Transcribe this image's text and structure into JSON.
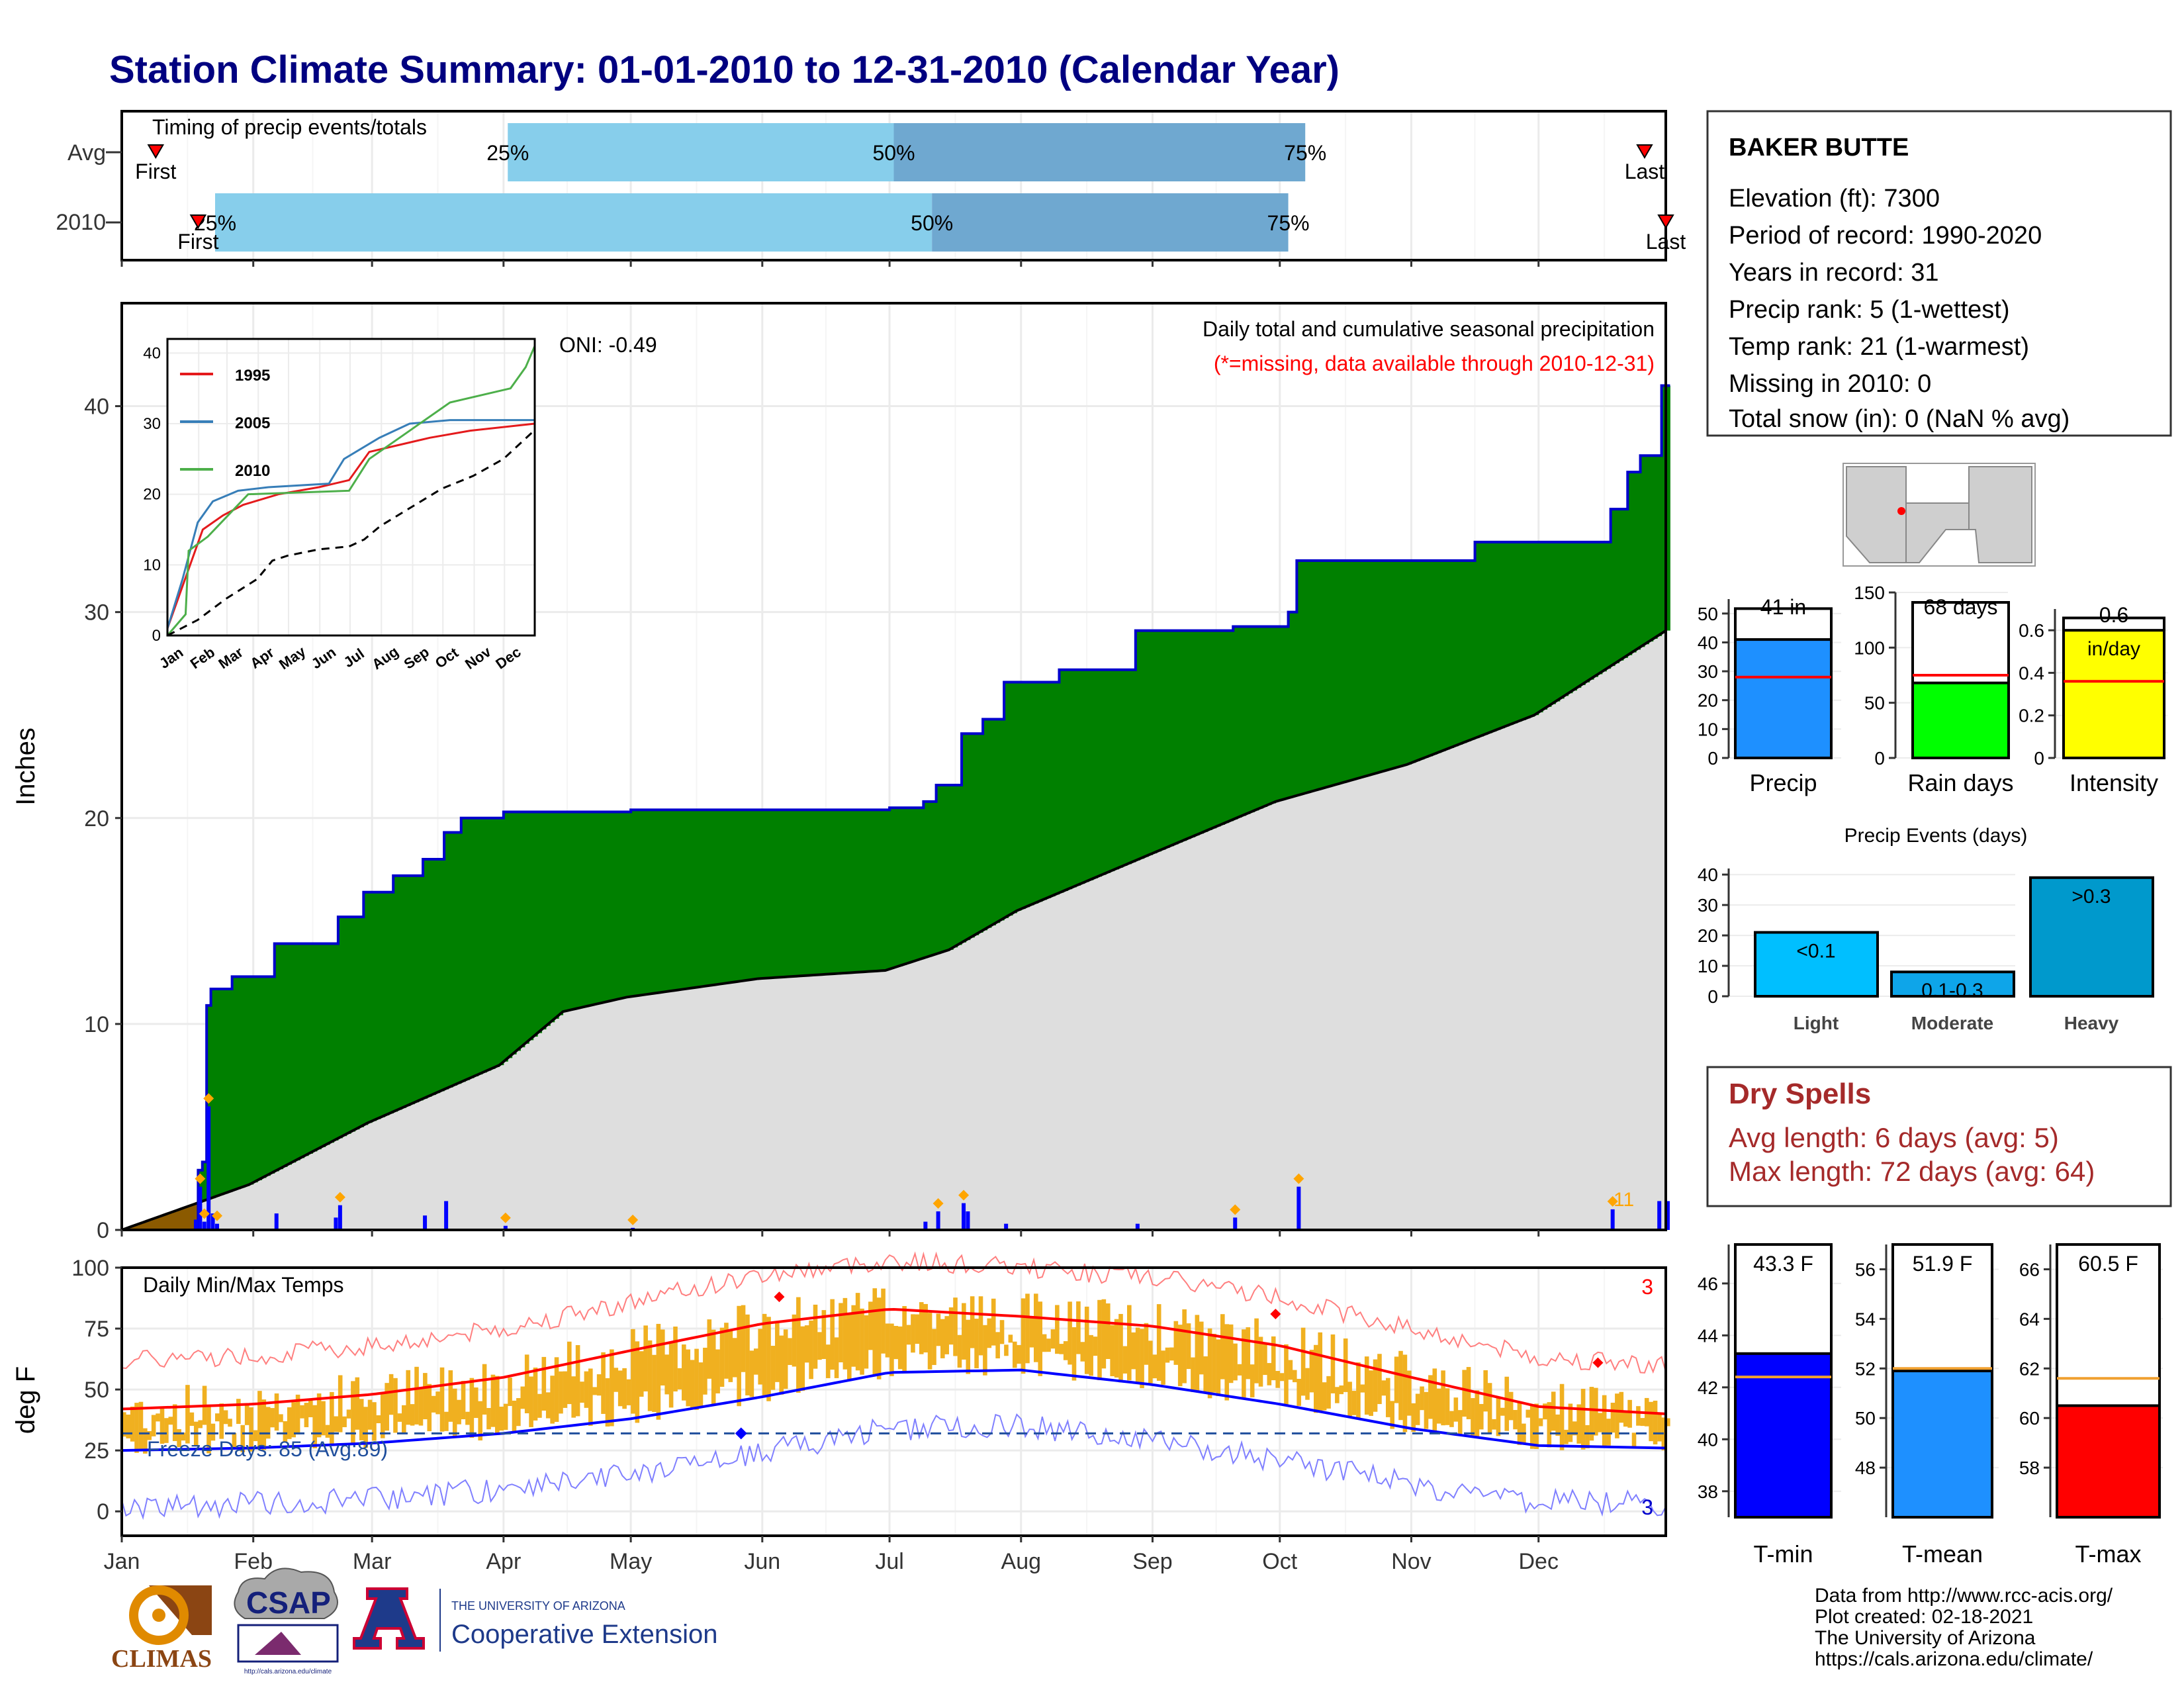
{
  "title": "Station Climate Summary: 01-01-2010 to 12-31-2010 (Calendar Year)",
  "colors": {
    "title": "#000080",
    "precip_fill": "#008000",
    "avg_fill": "#dedede",
    "deficit_fill": "#8b5a00",
    "cumulative_line": "#0000cc",
    "daily_bar": "#0000ff",
    "marker": "#ffa500",
    "temp_band": "#f0b020",
    "tmax_avg": "#ff0000",
    "tmin_avg": "#0000ff",
    "freeze": "#1f4e9c",
    "dry_spells": "#a52a2a",
    "light_blue": "#87ceeb",
    "mid_blue": "#6fa8d0"
  },
  "timing": {
    "label": "Timing of precip events/totals",
    "rows": [
      "Avg",
      "2010"
    ],
    "pct_labels": [
      "25%",
      "50%",
      "75%"
    ],
    "first_label": "First",
    "last_label": "Last",
    "avg": {
      "first": "2010-01-09",
      "p25": "2010-04-02",
      "p50": "2010-07-02",
      "p75": "2010-10-07",
      "last": "2010-12-26"
    },
    "y2010": {
      "first": "2010-01-19",
      "p25": "2010-01-23",
      "p50": "2010-07-11",
      "p75": "2010-10-03",
      "last": "2010-12-31"
    }
  },
  "chart_data": [
    {
      "type": "area",
      "name": "Daily total and cumulative seasonal precipitation",
      "label": "Daily total and cumulative seasonal precipitation",
      "note": "(*=missing, data available through 2010-12-31)",
      "oni": "ONI: -0.49",
      "ylabel": "Inches",
      "ylim": [
        0,
        45
      ],
      "yticks": [
        0,
        10,
        20,
        30,
        40
      ],
      "months": [
        "Jan",
        "Feb",
        "Mar",
        "Apr",
        "May",
        "Jun",
        "Jul",
        "Aug",
        "Sep",
        "Oct",
        "Nov",
        "Dec"
      ],
      "max_daily_label": "11",
      "cumulative_2010": [
        [
          "2010-01-01",
          0
        ],
        [
          "2010-01-18",
          0
        ],
        [
          "2010-01-19",
          2.9
        ],
        [
          "2010-01-20",
          3.3
        ],
        [
          "2010-01-21",
          10.9
        ],
        [
          "2010-01-22",
          11.7
        ],
        [
          "2010-01-27",
          12.3
        ],
        [
          "2010-02-06",
          13.9
        ],
        [
          "2010-02-21",
          15.2
        ],
        [
          "2010-02-27",
          16.4
        ],
        [
          "2010-03-06",
          17.2
        ],
        [
          "2010-03-13",
          18.0
        ],
        [
          "2010-03-18",
          19.3
        ],
        [
          "2010-03-22",
          20.0
        ],
        [
          "2010-04-01",
          20.3
        ],
        [
          "2010-05-01",
          20.4
        ],
        [
          "2010-07-01",
          20.5
        ],
        [
          "2010-07-09",
          20.8
        ],
        [
          "2010-07-12",
          21.6
        ],
        [
          "2010-07-18",
          24.1
        ],
        [
          "2010-07-23",
          24.8
        ],
        [
          "2010-07-28",
          26.6
        ],
        [
          "2010-08-10",
          27.2
        ],
        [
          "2010-08-28",
          29.1
        ],
        [
          "2010-09-20",
          29.3
        ],
        [
          "2010-10-03",
          30.0
        ],
        [
          "2010-10-05",
          32.5
        ],
        [
          "2010-10-08",
          32.5
        ],
        [
          "2010-11-16",
          33.4
        ],
        [
          "2010-12-10",
          33.4
        ],
        [
          "2010-12-18",
          35.0
        ],
        [
          "2010-12-22",
          36.8
        ],
        [
          "2010-12-25",
          37.6
        ],
        [
          "2010-12-30",
          41.0
        ],
        [
          "2010-12-31",
          41.0
        ]
      ],
      "average_cumulative": [
        [
          "2010-01-01",
          0
        ],
        [
          "2010-01-31",
          2.2
        ],
        [
          "2010-02-28",
          5.2
        ],
        [
          "2010-03-31",
          8.0
        ],
        [
          "2010-04-15",
          10.6
        ],
        [
          "2010-04-30",
          11.3
        ],
        [
          "2010-05-31",
          12.2
        ],
        [
          "2010-06-30",
          12.6
        ],
        [
          "2010-07-15",
          13.6
        ],
        [
          "2010-07-31",
          15.5
        ],
        [
          "2010-08-31",
          18.2
        ],
        [
          "2010-09-30",
          20.8
        ],
        [
          "2010-10-31",
          22.6
        ],
        [
          "2010-11-30",
          25.0
        ],
        [
          "2010-12-31",
          29.1
        ]
      ],
      "daily_events": [
        [
          "2010-01-18",
          0.5
        ],
        [
          "2010-01-19",
          2.1
        ],
        [
          "2010-01-20",
          0.4
        ],
        [
          "2010-01-21",
          6.0
        ],
        [
          "2010-01-22",
          0.8
        ],
        [
          "2010-01-23",
          0.3
        ],
        [
          "2010-02-06",
          0.8
        ],
        [
          "2010-02-20",
          0.6
        ],
        [
          "2010-02-21",
          1.2
        ],
        [
          "2010-03-13",
          0.7
        ],
        [
          "2010-03-18",
          1.4
        ],
        [
          "2010-04-01",
          0.2
        ],
        [
          "2010-05-01",
          0.1
        ],
        [
          "2010-07-09",
          0.4
        ],
        [
          "2010-07-12",
          0.9
        ],
        [
          "2010-07-18",
          1.3
        ],
        [
          "2010-07-19",
          0.9
        ],
        [
          "2010-07-28",
          0.3
        ],
        [
          "2010-08-28",
          0.3
        ],
        [
          "2010-09-20",
          0.6
        ],
        [
          "2010-10-05",
          2.1
        ],
        [
          "2010-12-18",
          1.0
        ],
        [
          "2010-12-29",
          1.4
        ],
        [
          "2010-12-31",
          1.4
        ]
      ],
      "marker_days": [
        "2010-01-19",
        "2010-01-20",
        "2010-01-21",
        "2010-01-23",
        "2010-02-21",
        "2010-04-01",
        "2010-05-01",
        "2010-07-12",
        "2010-07-18",
        "2010-09-20",
        "2010-10-05",
        "2010-12-18"
      ]
    },
    {
      "type": "line",
      "name": "inset cumulative precip",
      "series": [
        {
          "name": "1995",
          "color": "#e41a1c"
        },
        {
          "name": "2005",
          "color": "#377eb8"
        },
        {
          "name": "2010",
          "color": "#4daf4a"
        }
      ],
      "months": [
        "Jan",
        "Feb",
        "Mar",
        "Apr",
        "May",
        "Jun",
        "Jul",
        "Aug",
        "Sep",
        "Oct",
        "Nov",
        "Dec"
      ],
      "ylim": [
        0,
        40
      ],
      "yticks": [
        0,
        10,
        20,
        30,
        40
      ]
    },
    {
      "type": "line",
      "name": "Daily Min/Max Temps",
      "label": "Daily Min/Max Temps",
      "ylabel": "deg F",
      "ylim": [
        -10,
        100
      ],
      "yticks": [
        0,
        25,
        50,
        75,
        100
      ],
      "freeze_label": "Freeze Days: 85 (Avg:89)",
      "freeze_line": 32,
      "corner_count_top": "3",
      "corner_count_bottom": "3",
      "avg_tmax": [
        [
          0,
          42
        ],
        [
          31,
          44
        ],
        [
          59,
          48
        ],
        [
          90,
          55
        ],
        [
          120,
          66
        ],
        [
          151,
          77
        ],
        [
          181,
          83
        ],
        [
          212,
          80
        ],
        [
          243,
          76
        ],
        [
          273,
          68
        ],
        [
          304,
          55
        ],
        [
          334,
          43
        ],
        [
          364,
          40
        ]
      ],
      "avg_tmin": [
        [
          0,
          25
        ],
        [
          31,
          26
        ],
        [
          59,
          28
        ],
        [
          90,
          32
        ],
        [
          120,
          38
        ],
        [
          151,
          47
        ],
        [
          181,
          57
        ],
        [
          212,
          58
        ],
        [
          243,
          52
        ],
        [
          273,
          44
        ],
        [
          304,
          34
        ],
        [
          334,
          27
        ],
        [
          364,
          26
        ]
      ]
    },
    {
      "type": "bar",
      "name": "Precip",
      "categories": [
        "Precip"
      ],
      "values": [
        41
      ],
      "avg": 28,
      "label": "41 in",
      "ylim": [
        0,
        55
      ],
      "yticks": [
        0,
        10,
        20,
        30,
        40,
        50
      ],
      "color": "#1e90ff"
    },
    {
      "type": "bar",
      "name": "Rain days",
      "categories": [
        "Rain days"
      ],
      "values": [
        68
      ],
      "avg": 75,
      "label": "68 days",
      "ylim": [
        0,
        150
      ],
      "yticks": [
        0,
        50,
        100,
        150
      ],
      "color": "#00ff00"
    },
    {
      "type": "bar",
      "name": "Intensity",
      "categories": [
        "Intensity"
      ],
      "values": [
        0.6
      ],
      "avg": 0.36,
      "label": "0.6",
      "label2": "in/day",
      "ylim": [
        0,
        0.7
      ],
      "yticks": [
        0.0,
        0.2,
        0.4,
        0.6
      ],
      "color": "#ffff00"
    },
    {
      "type": "bar",
      "name": "Precip Events (days)",
      "title": "Precip Events (days)",
      "categories": [
        "Light",
        "Moderate",
        "Heavy"
      ],
      "values": [
        21,
        8,
        39
      ],
      "bar_labels": [
        "<0.1",
        "0.1-0.3",
        ">0.3"
      ],
      "colors": [
        "#00bfff",
        "#0ea5e9",
        "#0099cc"
      ],
      "ylim": [
        0,
        42
      ],
      "yticks": [
        0,
        10,
        20,
        30,
        40
      ]
    },
    {
      "type": "bar",
      "name": "T-min",
      "categories": [
        "T-min"
      ],
      "values": [
        43.3
      ],
      "avg": 42.4,
      "label": "43.3 F",
      "ylim": [
        37,
        47.5
      ],
      "yticks": [
        38,
        40,
        42,
        44,
        46
      ],
      "color": "#0000ff"
    },
    {
      "type": "bar",
      "name": "T-mean",
      "categories": [
        "T-mean"
      ],
      "values": [
        51.9
      ],
      "avg": 52.0,
      "label": "51.9 F",
      "ylim": [
        46,
        57
      ],
      "yticks": [
        48,
        50,
        52,
        54,
        56
      ],
      "color": "#1e90ff"
    },
    {
      "type": "bar",
      "name": "T-max",
      "categories": [
        "T-max"
      ],
      "values": [
        60.5
      ],
      "avg": 61.6,
      "label": "60.5 F",
      "ylim": [
        56,
        67
      ],
      "yticks": [
        58,
        60,
        62,
        64,
        66
      ],
      "color": "#ff0000"
    }
  ],
  "station": {
    "name": "BAKER BUTTE",
    "lines": [
      "Elevation (ft): 7300",
      "Period of record: 1990-2020",
      "Years in record: 31",
      "Precip rank: 5 (1-wettest)",
      "Temp rank: 21 (1-warmest)",
      "Missing in 2010: 0",
      "Total snow (in): 0 (NaN % avg)"
    ]
  },
  "dry_spells": {
    "title": "Dry Spells",
    "avg_line": "Avg length: 6 days (avg: 5)",
    "max_line": "Max length: 72 days (avg: 64)"
  },
  "footer": {
    "lines": [
      "Data from http://www.rcc-acis.org/",
      "Plot created: 02-18-2021",
      "The University of Arizona",
      "https://cals.arizona.edu/climate/"
    ],
    "logos": {
      "climas": "CLIMAS",
      "csap": "CSAP",
      "csap_url": "http://cals.arizona.edu/climate",
      "ua_top": "THE UNIVERSITY OF ARIZONA",
      "ua_bottom": "Cooperative Extension"
    }
  }
}
